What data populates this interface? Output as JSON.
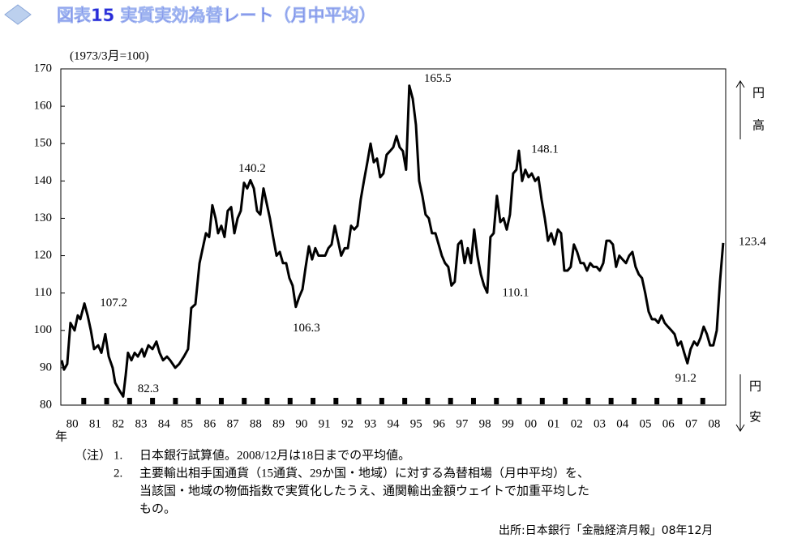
{
  "chart_data": {
    "type": "line",
    "title": "図表15 実質実効為替レート（月中平均）",
    "y_axis_label": "(1973/3月=100)",
    "x_axis_label": "年",
    "direction_labels": {
      "up": [
        "円",
        "高"
      ],
      "down": [
        "円",
        "安"
      ]
    },
    "xlim": [
      1980,
      2009
    ],
    "xticks": [
      {
        "value": 1980.5,
        "label": "80"
      },
      {
        "value": 1981.5,
        "label": "81"
      },
      {
        "value": 1982.5,
        "label": "82"
      },
      {
        "value": 1983.5,
        "label": "83"
      },
      {
        "value": 1984.5,
        "label": "84"
      },
      {
        "value": 1985.5,
        "label": "85"
      },
      {
        "value": 1986.5,
        "label": "86"
      },
      {
        "value": 1987.5,
        "label": "87"
      },
      {
        "value": 1988.5,
        "label": "88"
      },
      {
        "value": 1989.5,
        "label": "89"
      },
      {
        "value": 1990.5,
        "label": "90"
      },
      {
        "value": 1991.5,
        "label": "91"
      },
      {
        "value": 1992.5,
        "label": "92"
      },
      {
        "value": 1993.5,
        "label": "93"
      },
      {
        "value": 1994.5,
        "label": "94"
      },
      {
        "value": 1995.5,
        "label": "95"
      },
      {
        "value": 1996.5,
        "label": "96"
      },
      {
        "value": 1997.5,
        "label": "97"
      },
      {
        "value": 1998.5,
        "label": "98"
      },
      {
        "value": 1999.5,
        "label": "99"
      },
      {
        "value": 2000.5,
        "label": "00"
      },
      {
        "value": 2001.5,
        "label": "01"
      },
      {
        "value": 2002.5,
        "label": "02"
      },
      {
        "value": 2003.5,
        "label": "03"
      },
      {
        "value": 2004.5,
        "label": "04"
      },
      {
        "value": 2005.5,
        "label": "05"
      },
      {
        "value": 2006.5,
        "label": "06"
      },
      {
        "value": 2007.5,
        "label": "07"
      },
      {
        "value": 2008.5,
        "label": "08"
      }
    ],
    "ylim": [
      80,
      170
    ],
    "yticks": [
      80,
      90,
      100,
      110,
      120,
      130,
      140,
      150,
      160,
      170
    ],
    "x": [
      1980.04,
      1980.14,
      1980.28,
      1980.42,
      1980.6,
      1980.74,
      1980.85,
      1981.03,
      1981.17,
      1981.31,
      1981.45,
      1981.63,
      1981.77,
      1981.94,
      1982.09,
      1982.26,
      1982.37,
      1982.55,
      1982.72,
      1982.83,
      1982.93,
      1983.08,
      1983.22,
      1983.36,
      1983.54,
      1983.64,
      1983.82,
      1984.0,
      1984.17,
      1984.31,
      1984.46,
      1984.63,
      1984.77,
      1984.99,
      1985.16,
      1985.37,
      1985.55,
      1985.69,
      1985.87,
      1986.05,
      1986.19,
      1986.33,
      1986.47,
      1986.61,
      1986.75,
      1986.86,
      1987.0,
      1987.14,
      1987.28,
      1987.43,
      1987.57,
      1987.71,
      1987.85,
      1987.99,
      1988.13,
      1988.27,
      1988.42,
      1988.56,
      1988.7,
      1988.84,
      1988.98,
      1989.12,
      1989.26,
      1989.41,
      1989.55,
      1989.69,
      1989.83,
      1989.97,
      1990.11,
      1990.25,
      1990.4,
      1990.54,
      1990.68,
      1990.82,
      1990.96,
      1991.1,
      1991.24,
      1991.39,
      1991.53,
      1991.67,
      1991.81,
      1991.95,
      1992.09,
      1992.23,
      1992.38,
      1992.52,
      1992.66,
      1992.8,
      1992.94,
      1993.08,
      1993.22,
      1993.37,
      1993.51,
      1993.65,
      1993.79,
      1993.93,
      1994.07,
      1994.21,
      1994.36,
      1994.5,
      1994.64,
      1994.78,
      1994.92,
      1995.06,
      1995.2,
      1995.35,
      1995.49,
      1995.63,
      1995.77,
      1995.91,
      1996.05,
      1996.19,
      1996.34,
      1996.48,
      1996.62,
      1996.76,
      1996.9,
      1997.04,
      1997.18,
      1997.33,
      1997.47,
      1997.61,
      1997.75,
      1997.89,
      1998.03,
      1998.17,
      1998.32,
      1998.46,
      1998.6,
      1998.74,
      1998.88,
      1999.02,
      1999.17,
      1999.31,
      1999.45,
      1999.59,
      1999.73,
      1999.87,
      1999.98,
      2000.12,
      2000.26,
      2000.4,
      2000.54,
      2000.69,
      2000.83,
      2000.97,
      2001.11,
      2001.25,
      2001.39,
      2001.53,
      2001.68,
      2001.82,
      2001.96,
      2002.1,
      2002.24,
      2002.38,
      2002.52,
      2002.67,
      2002.81,
      2002.95,
      2003.09,
      2003.23,
      2003.37,
      2003.51,
      2003.66,
      2003.8,
      2003.94,
      2004.08,
      2004.22,
      2004.36,
      2004.5,
      2004.65,
      2004.79,
      2004.93,
      2005.07,
      2005.21,
      2005.35,
      2005.49,
      2005.64,
      2005.78,
      2005.92,
      2006.06,
      2006.2,
      2006.34,
      2006.48,
      2006.63,
      2006.77,
      2006.91,
      2007.05,
      2007.19,
      2007.33,
      2007.47,
      2007.62,
      2007.76,
      2007.9,
      2008.04,
      2008.18,
      2008.32,
      2008.46,
      2008.61,
      2008.75,
      2008.89
    ],
    "series": [
      {
        "color": "#000000",
        "values": [
          92,
          89.5,
          91,
          102,
          100,
          104,
          103,
          107.2,
          104,
          100,
          95,
          96,
          94,
          99,
          93,
          90,
          86,
          84,
          82.3,
          88,
          94,
          92,
          94,
          93,
          95,
          93,
          96,
          95,
          97,
          94,
          92,
          93,
          92,
          90,
          91,
          93,
          95,
          106,
          107,
          118,
          122,
          126,
          125,
          133.5,
          130,
          126,
          128,
          125,
          132,
          133,
          126,
          130,
          132,
          139.5,
          138,
          140.2,
          138,
          132,
          131,
          138,
          134,
          130,
          125,
          120,
          121,
          118,
          118,
          114,
          112,
          106.3,
          109,
          111,
          117,
          122.5,
          119,
          122,
          120,
          120,
          120,
          122,
          123,
          128,
          124,
          120,
          122,
          122,
          128,
          127,
          128,
          135,
          140,
          145,
          150,
          145,
          146,
          141,
          142,
          147,
          148,
          149,
          152,
          149,
          148,
          143,
          165.5,
          162,
          155,
          140,
          136,
          131,
          130,
          126,
          126,
          123,
          120,
          118,
          117,
          112,
          113,
          123,
          124,
          118,
          122,
          118,
          127,
          120,
          115,
          112,
          110.1,
          125,
          126,
          136,
          129,
          130,
          127,
          131,
          142,
          143,
          148.1,
          140,
          143,
          141,
          142,
          140,
          141,
          135,
          130,
          124,
          126,
          123,
          127,
          126,
          116,
          116,
          117,
          123,
          121,
          118,
          118,
          116,
          118,
          117,
          117,
          116,
          118,
          124,
          124,
          123,
          117,
          120,
          119,
          118,
          120,
          121,
          117,
          115,
          114,
          110,
          105,
          103,
          103,
          102,
          104,
          102,
          101,
          100,
          99,
          96,
          97,
          94,
          91.2,
          95,
          97,
          96,
          98,
          101,
          99,
          96,
          96,
          100,
          113,
          123.4
        ]
      }
    ],
    "annotations": [
      {
        "text": "107.2",
        "x": 1981.03,
        "y": 107.2
      },
      {
        "text": "82.3",
        "x": 1982.72,
        "y": 82.3
      },
      {
        "text": "140.2",
        "x": 1988.27,
        "y": 140.2
      },
      {
        "text": "106.3",
        "x": 1990.25,
        "y": 106.3
      },
      {
        "text": "165.5",
        "x": 1995.2,
        "y": 165.5
      },
      {
        "text": "110.1",
        "x": 1998.6,
        "y": 110.1
      },
      {
        "text": "148.1",
        "x": 1999.98,
        "y": 148.1
      },
      {
        "text": "91.2",
        "x": 2007.33,
        "y": 91.2
      },
      {
        "text": "123.4",
        "x": 2008.89,
        "y": 123.4
      }
    ],
    "notes": {
      "label": "（注）",
      "items": [
        {
          "number": "1.",
          "lines": [
            "日本銀行試算値。2008/12月は18日までの平均値。"
          ]
        },
        {
          "number": "2.",
          "lines": [
            "主要輸出相手国通貨（15通貨、29か国・地域）に対する為替相場（月中平均）を、",
            "当該国・地域の物価指数で実質化したうえ、通関輸出金額ウェイトで加重平均した",
            "もの。"
          ]
        }
      ]
    },
    "source": "出所:日本銀行「金融経済月報」08年12月"
  }
}
